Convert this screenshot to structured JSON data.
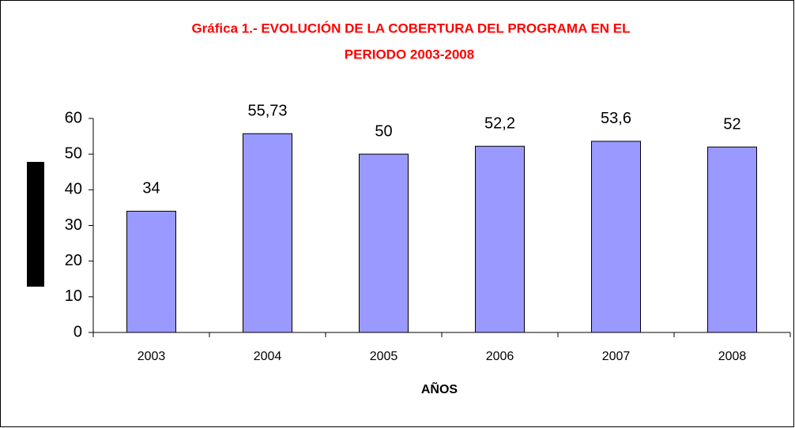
{
  "chart_data": {
    "type": "bar",
    "title": [
      "Gráfica 1.- EVOLUCIÓN DE LA COBERTURA DEL PROGRAMA EN EL",
      "PERIODO 2003-2008"
    ],
    "x_label": "AÑOS",
    "categories": [
      "2003",
      "2004",
      "2005",
      "2006",
      "2007",
      "2008"
    ],
    "values": [
      34,
      55.73,
      50,
      52.2,
      53.6,
      52
    ],
    "value_labels": [
      "34",
      "55,73",
      "50",
      "52,2",
      "53,6",
      "52"
    ],
    "color": "#9999ff",
    "ylim": [
      0,
      60
    ],
    "yticks": [
      0,
      10,
      20,
      30,
      40,
      50,
      60
    ],
    "grid": false
  }
}
